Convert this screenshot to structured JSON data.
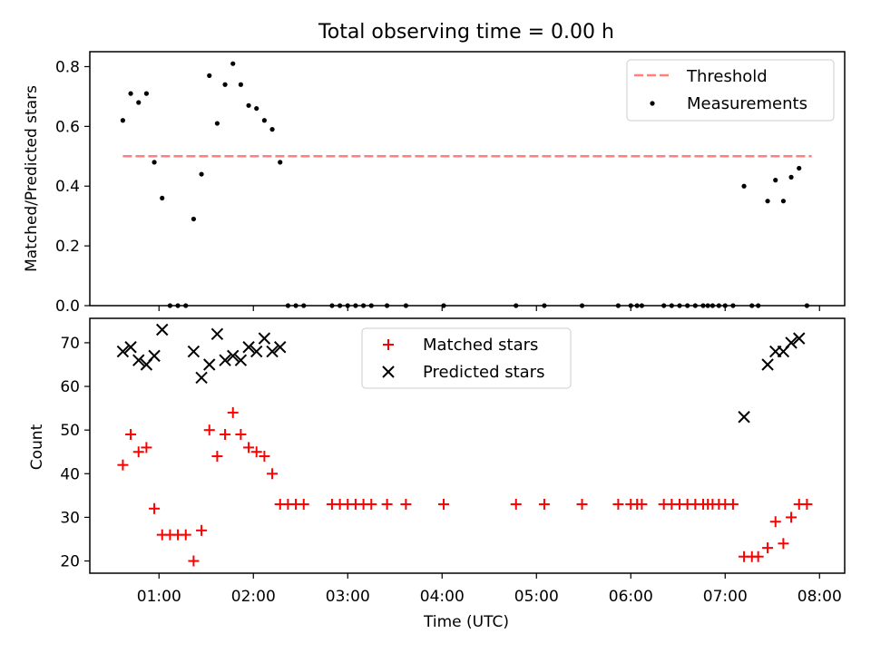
{
  "title": "Total observing time = 0.00 h",
  "colors": {
    "threshold": "#ff7f7f",
    "measurements": "#000000",
    "matched": "#ff0000",
    "predicted": "#000000"
  },
  "chart_data": [
    {
      "type": "scatter",
      "panel": "top",
      "ylabel": "Matched/Predicted stars",
      "ylim": [
        0,
        0.85
      ],
      "yticks": [
        0,
        0.2,
        0.4,
        0.6,
        0.8
      ],
      "ytick_labels": [
        "0.0",
        "0.2",
        "0.4",
        "0.6",
        "0.8"
      ],
      "legend_placement": "top-right",
      "threshold": {
        "name": "Threshold",
        "value": 0.5,
        "x_range": [
          "00:37",
          "07:55"
        ]
      },
      "series": [
        {
          "name": "Measurements",
          "points": [
            [
              "00:37",
              0.62
            ],
            [
              "00:42",
              0.71
            ],
            [
              "00:47",
              0.68
            ],
            [
              "00:52",
              0.71
            ],
            [
              "00:57",
              0.48
            ],
            [
              "01:02",
              0.36
            ],
            [
              "01:07",
              0.0
            ],
            [
              "01:12",
              0.0
            ],
            [
              "01:17",
              0.0
            ],
            [
              "01:22",
              0.29
            ],
            [
              "01:27",
              0.44
            ],
            [
              "01:32",
              0.77
            ],
            [
              "01:37",
              0.61
            ],
            [
              "01:42",
              0.74
            ],
            [
              "01:47",
              0.81
            ],
            [
              "01:52",
              0.74
            ],
            [
              "01:57",
              0.67
            ],
            [
              "02:02",
              0.66
            ],
            [
              "02:07",
              0.62
            ],
            [
              "02:12",
              0.59
            ],
            [
              "02:17",
              0.48
            ],
            [
              "02:22",
              0.0
            ],
            [
              "02:27",
              0.0
            ],
            [
              "02:32",
              0.0
            ],
            [
              "02:50",
              0.0
            ],
            [
              "02:55",
              0.0
            ],
            [
              "03:00",
              0.0
            ],
            [
              "03:05",
              0.0
            ],
            [
              "03:10",
              0.0
            ],
            [
              "03:15",
              0.0
            ],
            [
              "03:25",
              0.0
            ],
            [
              "03:37",
              0.0
            ],
            [
              "04:01",
              0.0
            ],
            [
              "04:47",
              0.0
            ],
            [
              "05:05",
              0.0
            ],
            [
              "05:29",
              0.0
            ],
            [
              "05:52",
              0.0
            ],
            [
              "06:00",
              0.0
            ],
            [
              "06:04",
              0.0
            ],
            [
              "06:07",
              0.0
            ],
            [
              "06:21",
              0.0
            ],
            [
              "06:26",
              0.0
            ],
            [
              "06:31",
              0.0
            ],
            [
              "06:36",
              0.0
            ],
            [
              "06:41",
              0.0
            ],
            [
              "06:46",
              0.0
            ],
            [
              "06:49",
              0.0
            ],
            [
              "06:52",
              0.0
            ],
            [
              "06:56",
              0.0
            ],
            [
              "07:00",
              0.0
            ],
            [
              "07:05",
              0.0
            ],
            [
              "07:12",
              0.4
            ],
            [
              "07:17",
              0.0
            ],
            [
              "07:21",
              0.0
            ],
            [
              "07:27",
              0.35
            ],
            [
              "07:32",
              0.42
            ],
            [
              "07:37",
              0.35
            ],
            [
              "07:42",
              0.43
            ],
            [
              "07:47",
              0.46
            ],
            [
              "07:52",
              0.0
            ]
          ]
        }
      ]
    },
    {
      "type": "scatter",
      "panel": "bottom",
      "xlabel": "Time (UTC)",
      "ylabel": "Count",
      "ylim": [
        17.2,
        75.6
      ],
      "yticks": [
        20,
        30,
        40,
        50,
        60,
        70
      ],
      "xlim": [
        "00:16",
        "08:16"
      ],
      "xticks": [
        "01:00",
        "02:00",
        "03:00",
        "04:00",
        "05:00",
        "06:00",
        "07:00",
        "08:00"
      ],
      "legend_placement": "top-center",
      "series": [
        {
          "name": "Matched stars",
          "marker": "plus",
          "points": [
            [
              "00:37",
              42
            ],
            [
              "00:42",
              49
            ],
            [
              "00:47",
              45
            ],
            [
              "00:52",
              46
            ],
            [
              "00:57",
              32
            ],
            [
              "01:02",
              26
            ],
            [
              "01:07",
              26
            ],
            [
              "01:12",
              26
            ],
            [
              "01:17",
              26
            ],
            [
              "01:22",
              20
            ],
            [
              "01:27",
              27
            ],
            [
              "01:32",
              50
            ],
            [
              "01:37",
              44
            ],
            [
              "01:42",
              49
            ],
            [
              "01:47",
              54
            ],
            [
              "01:52",
              49
            ],
            [
              "01:57",
              46
            ],
            [
              "02:02",
              45
            ],
            [
              "02:07",
              44
            ],
            [
              "02:12",
              40
            ],
            [
              "02:17",
              33
            ],
            [
              "02:22",
              33
            ],
            [
              "02:27",
              33
            ],
            [
              "02:32",
              33
            ],
            [
              "02:50",
              33
            ],
            [
              "02:55",
              33
            ],
            [
              "03:00",
              33
            ],
            [
              "03:05",
              33
            ],
            [
              "03:10",
              33
            ],
            [
              "03:15",
              33
            ],
            [
              "03:25",
              33
            ],
            [
              "03:37",
              33
            ],
            [
              "04:01",
              33
            ],
            [
              "04:47",
              33
            ],
            [
              "05:05",
              33
            ],
            [
              "05:29",
              33
            ],
            [
              "05:52",
              33
            ],
            [
              "06:00",
              33
            ],
            [
              "06:04",
              33
            ],
            [
              "06:07",
              33
            ],
            [
              "06:21",
              33
            ],
            [
              "06:26",
              33
            ],
            [
              "06:31",
              33
            ],
            [
              "06:36",
              33
            ],
            [
              "06:41",
              33
            ],
            [
              "06:46",
              33
            ],
            [
              "06:49",
              33
            ],
            [
              "06:52",
              33
            ],
            [
              "06:56",
              33
            ],
            [
              "07:00",
              33
            ],
            [
              "07:05",
              33
            ],
            [
              "07:12",
              21
            ],
            [
              "07:17",
              21
            ],
            [
              "07:21",
              21
            ],
            [
              "07:27",
              23
            ],
            [
              "07:32",
              29
            ],
            [
              "07:37",
              24
            ],
            [
              "07:42",
              30
            ],
            [
              "07:47",
              33
            ],
            [
              "07:52",
              33
            ]
          ]
        },
        {
          "name": "Predicted stars",
          "marker": "x",
          "points": [
            [
              "00:37",
              68
            ],
            [
              "00:42",
              69
            ],
            [
              "00:47",
              66
            ],
            [
              "00:52",
              65
            ],
            [
              "00:57",
              67
            ],
            [
              "01:02",
              73
            ],
            [
              "01:22",
              68
            ],
            [
              "01:27",
              62
            ],
            [
              "01:32",
              65
            ],
            [
              "01:37",
              72
            ],
            [
              "01:42",
              66
            ],
            [
              "01:47",
              67
            ],
            [
              "01:52",
              66
            ],
            [
              "01:57",
              69
            ],
            [
              "02:02",
              68
            ],
            [
              "02:07",
              71
            ],
            [
              "02:12",
              68
            ],
            [
              "02:17",
              69
            ],
            [
              "07:12",
              53
            ],
            [
              "07:27",
              65
            ],
            [
              "07:32",
              68
            ],
            [
              "07:37",
              68
            ],
            [
              "07:42",
              70
            ],
            [
              "07:47",
              71
            ]
          ]
        }
      ]
    }
  ]
}
